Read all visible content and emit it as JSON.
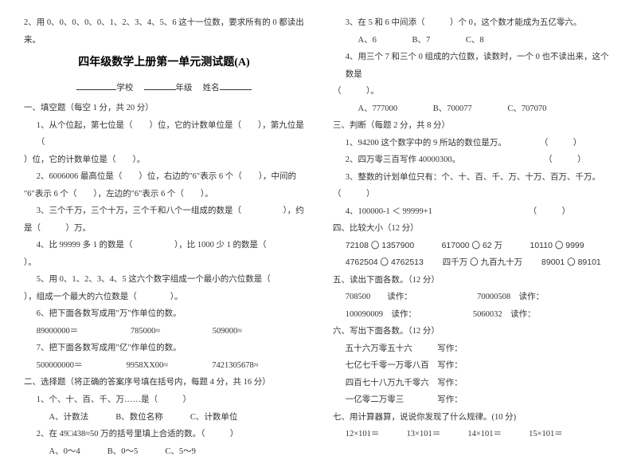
{
  "left": {
    "intro": "2、用 0、0、0、0、0、1、2、3、4、5、6 这十一位数，要求所有的 0 都读出来。",
    "title": "四年级数学上册第一单元测试题(A)",
    "form": {
      "school": "学校",
      "grade": "年级",
      "name": "姓名"
    },
    "s1_header": "一、填空题（每空 1 分，共 20 分）",
    "s1_1a": "1、从个位起，第七位是（　　）位，它的计数单位是（　　），第九位是（",
    "s1_1b": "）位，它的计数单位是（　　）。",
    "s1_2a": "2、6006006 最高位是（　　）位，右边的\"6\"表示 6 个（　　），中间的",
    "s1_2b": "\"6\"表示 6 个（　　），左边的\"6\"表示 6 个（　　）。",
    "s1_3a": "3、三个千万，三个十万，三个千和八个一组成的数是（　　　　　），约",
    "s1_3b": "是（　　　）万。",
    "s1_4a": "4、比 99999 多 1 的数是（　　　　　），比 1000 少 1 的数是（",
    "s1_4b": "）。",
    "s1_5a": "5、用 0、1、2、3、4、5 这六个数字组成一个最小的六位数是（",
    "s1_5b": "），组成一个最大的六位数是（　　　　）。",
    "s1_6": "6、把下面各数写成用\"万\"作单位的数。",
    "s1_6a": "89000000＝",
    "s1_6b": "785000≈",
    "s1_6c": "509000≈",
    "s1_7": "7、把下面各数写成用\"亿\"作单位的数。",
    "s1_7a": "500000000＝",
    "s1_7b": "9958XX00≈",
    "s1_7c": "7421305678≈",
    "s2_header": "二、选择题（将正确的答案序号填在括号内，每题 4 分，共 16 分）",
    "s2_1": "1、个、十、百、千、万……是（　　　）",
    "s2_1a": "A、计数法",
    "s2_1b": "B、数位名称",
    "s2_1c": "C、计数单位",
    "s2_2": "2、在 49□438≈50 万的括号里填上合适的数。（　　　）",
    "s2_2a": "A、0～4",
    "s2_2b": "B、0～5",
    "s2_2c": "C、5～9"
  },
  "right": {
    "s2_3": "3、在 5 和 6 中间添（　　　）个 0，这个数才能成为五亿零六。",
    "s2_3a": "A、6",
    "s2_3b": "B、7",
    "s2_3c": "C、8",
    "s2_4a": "4、用三个 7 和三个 0 组成的六位数，读数时，一个 0 也不读出来，这个数是",
    "s2_4b": "（　　　）。",
    "s2_4ca": "A、777000",
    "s2_4cb": "B、700077",
    "s2_4cc": "C、707070",
    "s3_header": "三、判断（每题 2 分，共 8 分）",
    "s3_1": "1、94200 这个数字中的 9 所站的数位是万。　　　　　（　　　）",
    "s3_2": "2、四万零三百写作 40000300。　　　　　　　　　　　（　　　）",
    "s3_3": "3、整数的计划单位只有：个、十、百、千、万、十万、百万、千万。",
    "s3_3b": "（　　　）",
    "s3_4": "4、100000-1 ＜ 99999+1　　　　　　　　　　　　（　　　）",
    "s4_header": "四、比较大小（12 分）",
    "s4_1a": "72108 〇 1357900",
    "s4_1b": "617000 〇 62 万",
    "s4_1c": "10110 〇 9999",
    "s4_2a": "4762504 〇 4762513",
    "s4_2b": "四千万 〇 九百九十万",
    "s4_2c": "89001 〇 89101",
    "s5_header": "五、读出下面各数。（12 分）",
    "s5_1a": "708500　　读作：",
    "s5_1b": "70000508　读作：",
    "s5_2a": "100090009　读作：",
    "s5_2b": "5060032　读作：",
    "s6_header": "六、写出下面各数。（12 分）",
    "s6_1": "五十六万零五十六　　　写作：",
    "s6_2": "七亿七千零一万零八百　写作：",
    "s6_3": "四百七十八万九千零六　写作：",
    "s6_4": "一亿零二万零三　　　　写作：",
    "s7_header": "七、用计算器算，说说你发现了什么规律。(10 分)",
    "s7_1a": "12×101＝",
    "s7_1b": "13×101＝",
    "s7_1c": "14×101＝",
    "s7_1d": "15×101＝"
  }
}
